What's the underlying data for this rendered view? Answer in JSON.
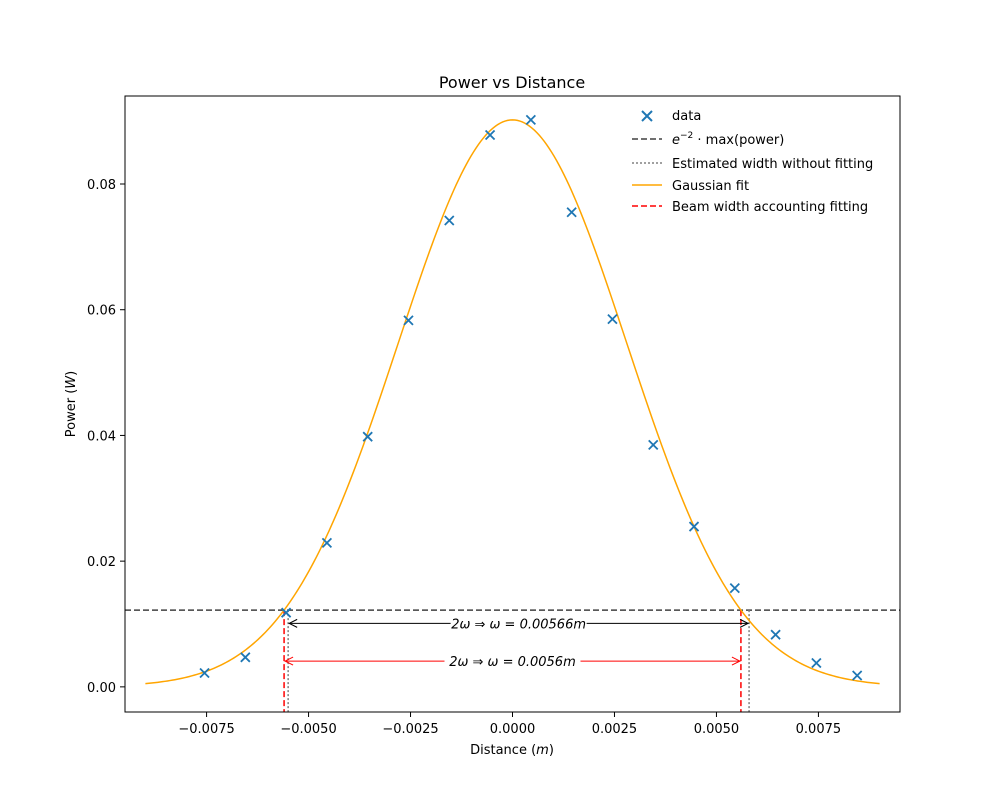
{
  "chart_data": {
    "type": "scatter",
    "title": "Power vs Distance",
    "xlabel": "Distance (m)",
    "ylabel": "Power (W)",
    "xlim": [
      -0.0095,
      0.0095
    ],
    "ylim": [
      -0.004,
      0.094
    ],
    "grid": false,
    "legend_position": "top-right",
    "x_ticks": [
      -0.0075,
      -0.005,
      -0.0025,
      0.0,
      0.0025,
      0.005,
      0.0075
    ],
    "x_tick_labels": [
      "−0.0075",
      "−0.0050",
      "−0.0025",
      "0.0000",
      "0.0025",
      "0.0050",
      "0.0075"
    ],
    "y_ticks": [
      0.0,
      0.02,
      0.04,
      0.06,
      0.08
    ],
    "y_tick_labels": [
      "0.00",
      "0.02",
      "0.04",
      "0.06",
      "0.08"
    ],
    "legend": [
      {
        "label": "data",
        "style": "marker-x",
        "color": "#1f77b4"
      },
      {
        "label": "e^{-2}·max(power)",
        "style": "dashed",
        "color": "#404040"
      },
      {
        "label": "Estimated width without fitting",
        "style": "dotted",
        "color": "#808080"
      },
      {
        "label": "Gaussian fit",
        "style": "solid",
        "color": "#ffa500"
      },
      {
        "label": "Beam width accounting fitting",
        "style": "dashed",
        "color": "#ff0000"
      }
    ],
    "series": [
      {
        "name": "data",
        "kind": "scatter",
        "color": "#1f77b4",
        "x": [
          -0.00755,
          -0.00655,
          -0.00555,
          -0.00455,
          -0.00355,
          -0.00255,
          -0.00155,
          -0.00055,
          0.00045,
          0.00145,
          0.00245,
          0.00345,
          0.00445,
          0.00545,
          0.00645,
          0.00745,
          0.00845
        ],
        "y": [
          0.0022,
          0.0047,
          0.0118,
          0.0229,
          0.0398,
          0.0583,
          0.0742,
          0.0878,
          0.0902,
          0.0755,
          0.0585,
          0.0385,
          0.0255,
          0.0157,
          0.0083,
          0.0038,
          0.0018
        ]
      },
      {
        "name": "Gaussian fit",
        "kind": "line",
        "color": "#ffa500",
        "function": "gaussian",
        "amplitude": 0.0902,
        "center": 0.0,
        "waist": 0.0056,
        "x_range": [
          -0.009,
          0.009
        ]
      }
    ],
    "threshold_y": 0.0122,
    "estimated_width_x": [
      -0.0055,
      0.0058
    ],
    "fit_width_x": [
      -0.0056,
      0.0056
    ],
    "annotations": [
      {
        "text": "2ω ⇒ ω = 0.00566m",
        "color": "#000000",
        "y": 0.0101,
        "x_from": -0.0055,
        "x_to": 0.0058
      },
      {
        "text": "2ω ⇒ ω = 0.0056m",
        "color": "#ff0000",
        "y": 0.0041,
        "x_from": -0.0056,
        "x_to": 0.0056
      }
    ]
  }
}
